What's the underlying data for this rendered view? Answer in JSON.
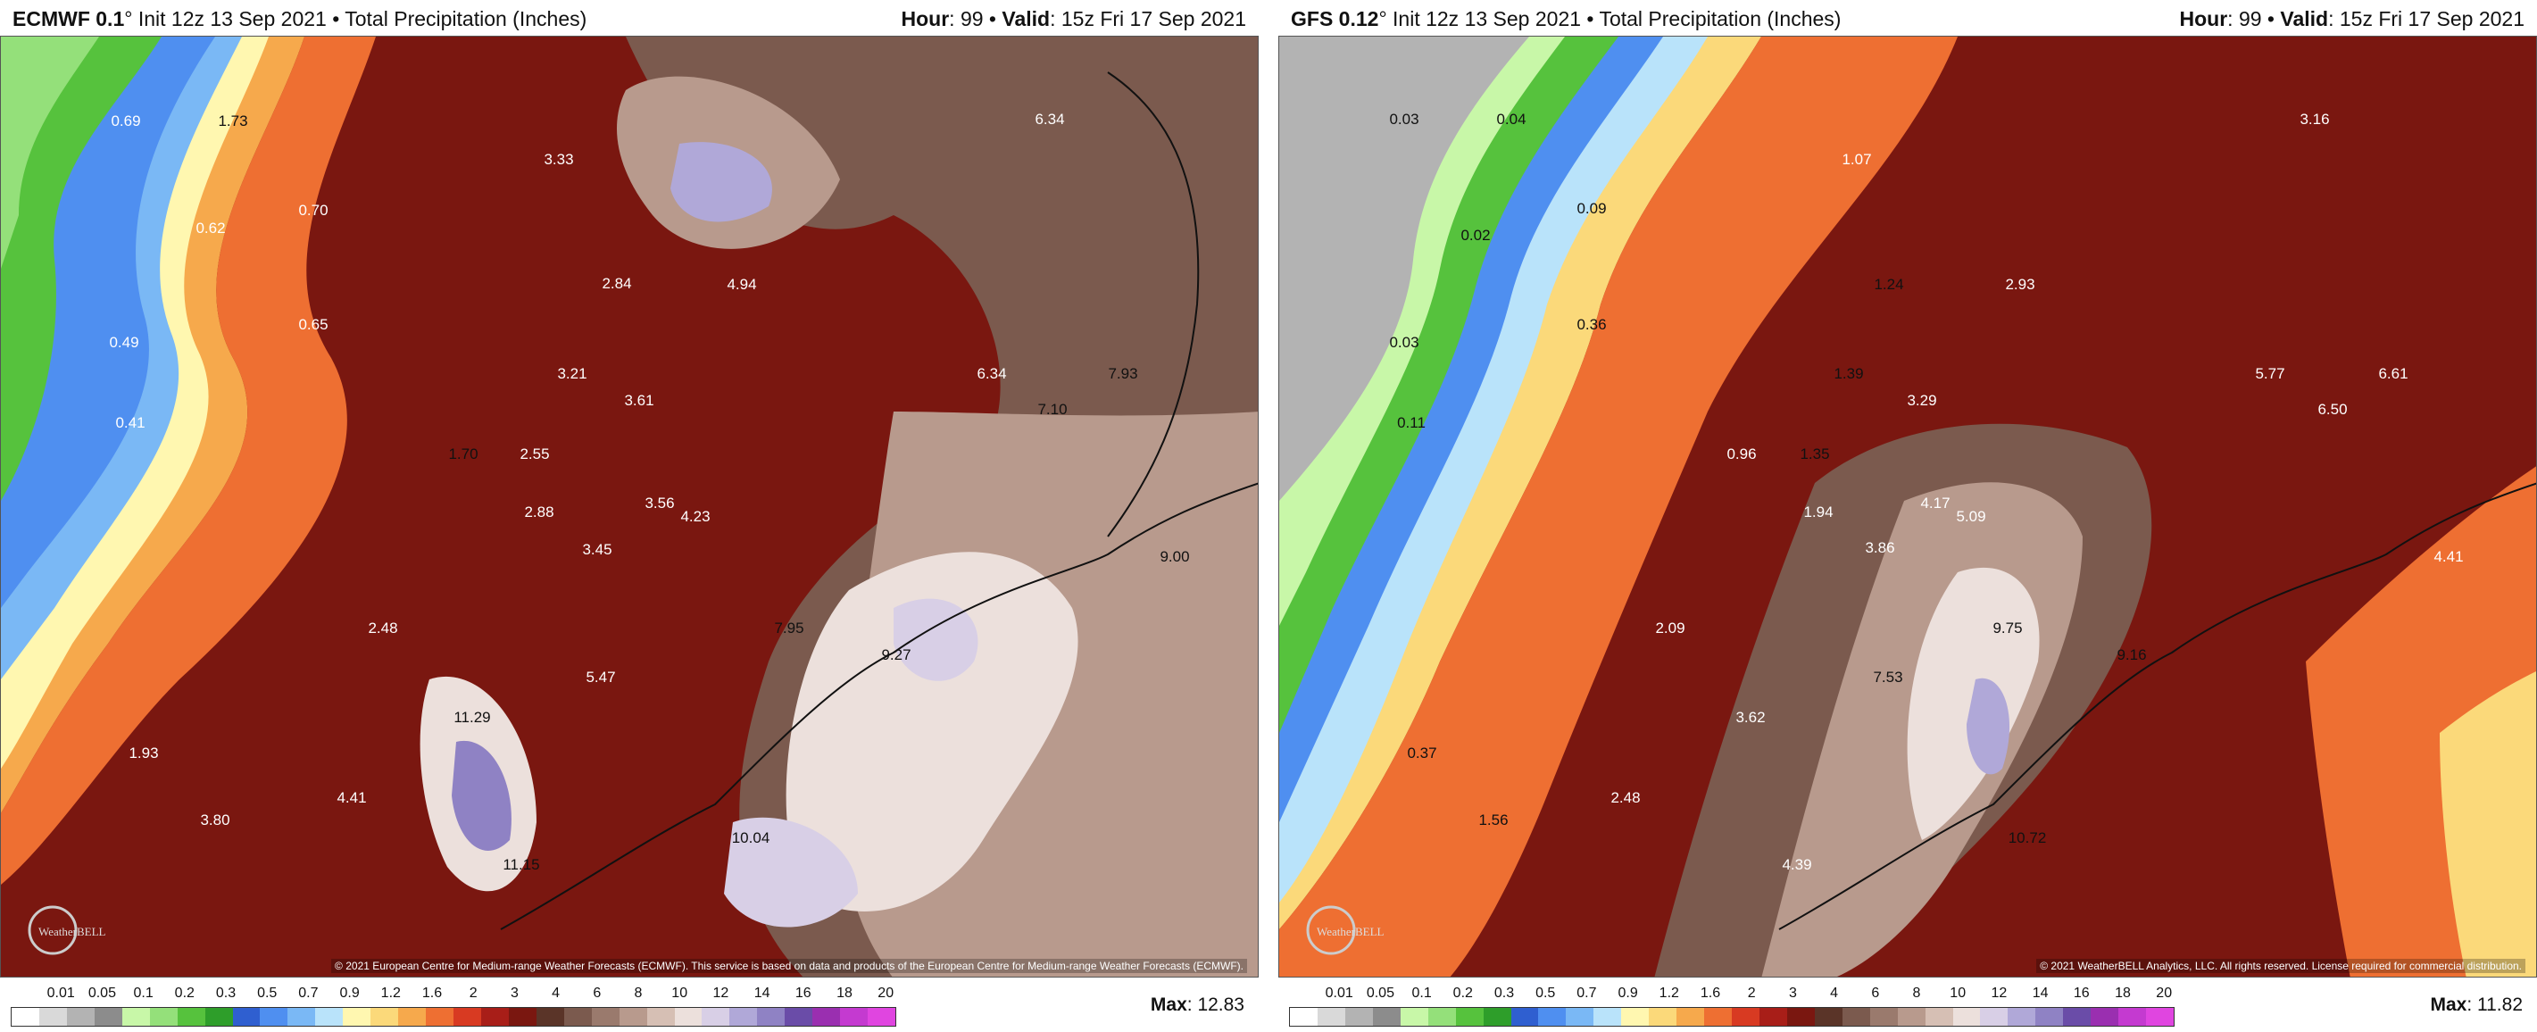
{
  "panels": [
    {
      "model": "ECMWF 0.1",
      "init": "Init 12z 13 Sep 2021",
      "product": "Total Precipitation (Inches)",
      "hour_label": "Hour",
      "hour": "99",
      "valid_label": "Valid",
      "valid": "15z Fri 17 Sep 2021",
      "max_label": "Max",
      "max": "12.83",
      "copyright": "© 2021 European Centre for Medium-range Weather Forecasts (ECMWF). This service is based on data and products of the European Centre for Medium-range Weather Forecasts (ECMWF).",
      "values": [
        "0.69",
        "1.73",
        "0.62",
        "0.70",
        "3.33",
        "0.65",
        "0.49",
        "0.41",
        "2.84",
        "4.94",
        "3.21",
        "3.61",
        "1.70",
        "2.55",
        "2.88",
        "3.56",
        "4.23",
        "3.45",
        "2.48",
        "5.47",
        "11.29",
        "1.93",
        "4.41",
        "3.80",
        "11.15",
        "6.34",
        "6.34",
        "7.93",
        "7.10",
        "9.00",
        "7.95",
        "9.27",
        "10.04"
      ]
    },
    {
      "model": "GFS 0.12",
      "init": "Init 12z 13 Sep 2021",
      "product": "Total Precipitation (Inches)",
      "hour_label": "Hour",
      "hour": "99",
      "valid_label": "Valid",
      "valid": "15z Fri 17 Sep 2021",
      "max_label": "Max",
      "max": "11.82",
      "copyright": "© 2021 WeatherBELL Analytics, LLC. All rights reserved. License required for commercial distribution.",
      "values": [
        "0.03",
        "0.04",
        "0.02",
        "0.09",
        "1.07",
        "3.16",
        "0.03",
        "0.36",
        "1.24",
        "2.93",
        "0.11",
        "1.39",
        "3.29",
        "5.77",
        "6.61",
        "6.50",
        "0.96",
        "1.35",
        "1.94",
        "4.17",
        "5.09",
        "3.86",
        "4.41",
        "2.09",
        "9.75",
        "9.16",
        "7.53",
        "3.62",
        "0.37",
        "2.48",
        "1.56",
        "10.72",
        "4.39"
      ]
    }
  ],
  "legend": {
    "ticks": [
      "0.01",
      "0.05",
      "0.1",
      "0.2",
      "0.3",
      "0.5",
      "0.7",
      "0.9",
      "1.2",
      "1.6",
      "2",
      "3",
      "4",
      "6",
      "8",
      "10",
      "12",
      "14",
      "16",
      "18",
      "20"
    ],
    "colors": [
      "#ffffff",
      "#d9d9d9",
      "#b3b3b3",
      "#8c8c8c",
      "#c8f7a8",
      "#94e07a",
      "#56c23d",
      "#2e9e2a",
      "#2f5fd0",
      "#4f8ff0",
      "#7ab8f5",
      "#b9e3fa",
      "#fff7b0",
      "#fbd97a",
      "#f6a94c",
      "#ee6f32",
      "#d83a22",
      "#a81e18",
      "#7a1710",
      "#5a3428",
      "#7b5a4e",
      "#9a7a6d",
      "#b89a8d",
      "#d6bfb4",
      "#ece0dc",
      "#d8cfe6",
      "#b0a8d8",
      "#8f82c4",
      "#6a4ca8",
      "#9a2fb0",
      "#c43ad0",
      "#e045e0"
    ]
  },
  "logo": "WeatherBELL"
}
